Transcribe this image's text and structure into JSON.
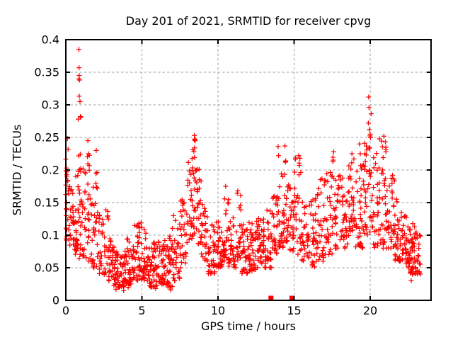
{
  "chart_data": {
    "type": "scatter",
    "title": "Day 201 of 2021, SRMTID for receiver cpvg",
    "xlabel": "GPS time / hours",
    "ylabel": "SRMTID / TECUs",
    "xlim": [
      0,
      24
    ],
    "ylim": [
      0,
      0.4
    ],
    "grid": true,
    "legend": "none",
    "marker": "plus",
    "marker_color": "#ff0000",
    "x_ticks": [
      {
        "v": 0,
        "label": "0"
      },
      {
        "v": 5,
        "label": "5"
      },
      {
        "v": 10,
        "label": "10"
      },
      {
        "v": 15,
        "label": "15"
      },
      {
        "v": 20,
        "label": "20"
      }
    ],
    "y_ticks": [
      {
        "v": 0,
        "label": "0"
      },
      {
        "v": 0.05,
        "label": "0.05"
      },
      {
        "v": 0.1,
        "label": "0.1"
      },
      {
        "v": 0.15,
        "label": "0.15"
      },
      {
        "v": 0.2,
        "label": "0.2"
      },
      {
        "v": 0.25,
        "label": "0.25"
      },
      {
        "v": 0.3,
        "label": "0.3"
      },
      {
        "v": 0.35,
        "label": "0.35"
      },
      {
        "v": 0.4,
        "label": "0.4"
      }
    ],
    "density_bins_comment": "each bin = [hour_start, hour_end, value_low, value_high, point_count] summarizing the dense scatter",
    "density_bins": [
      [
        0.0,
        0.25,
        0.09,
        0.22,
        26
      ],
      [
        0.25,
        0.55,
        0.08,
        0.18,
        22
      ],
      [
        0.55,
        0.8,
        0.07,
        0.2,
        22
      ],
      [
        0.8,
        1.0,
        0.06,
        0.34,
        24
      ],
      [
        1.0,
        1.3,
        0.06,
        0.22,
        22
      ],
      [
        1.3,
        1.6,
        0.06,
        0.24,
        20
      ],
      [
        1.6,
        1.9,
        0.05,
        0.18,
        20
      ],
      [
        1.9,
        2.2,
        0.05,
        0.2,
        18
      ],
      [
        2.2,
        2.5,
        0.04,
        0.14,
        18
      ],
      [
        2.5,
        2.8,
        0.04,
        0.15,
        18
      ],
      [
        2.8,
        3.1,
        0.03,
        0.1,
        22
      ],
      [
        3.1,
        3.5,
        0.02,
        0.09,
        30
      ],
      [
        3.5,
        4.0,
        0.02,
        0.08,
        38
      ],
      [
        4.0,
        4.5,
        0.025,
        0.095,
        38
      ],
      [
        4.5,
        5.0,
        0.03,
        0.12,
        38
      ],
      [
        5.0,
        5.5,
        0.03,
        0.11,
        38
      ],
      [
        5.5,
        6.0,
        0.02,
        0.09,
        40
      ],
      [
        6.0,
        6.5,
        0.025,
        0.09,
        40
      ],
      [
        6.5,
        7.0,
        0.02,
        0.1,
        36
      ],
      [
        7.0,
        7.5,
        0.03,
        0.13,
        32
      ],
      [
        7.5,
        8.0,
        0.05,
        0.16,
        30
      ],
      [
        8.0,
        8.3,
        0.08,
        0.22,
        24
      ],
      [
        8.3,
        8.6,
        0.1,
        0.253,
        26
      ],
      [
        8.6,
        8.9,
        0.08,
        0.21,
        22
      ],
      [
        8.9,
        9.3,
        0.06,
        0.15,
        26
      ],
      [
        9.3,
        9.8,
        0.04,
        0.12,
        34
      ],
      [
        9.8,
        10.3,
        0.05,
        0.13,
        36
      ],
      [
        10.3,
        10.7,
        0.06,
        0.175,
        28
      ],
      [
        10.7,
        11.2,
        0.05,
        0.13,
        34
      ],
      [
        11.2,
        11.5,
        0.06,
        0.165,
        20
      ],
      [
        11.5,
        12.0,
        0.04,
        0.12,
        36
      ],
      [
        12.0,
        12.5,
        0.045,
        0.12,
        38
      ],
      [
        12.5,
        13.0,
        0.05,
        0.135,
        38
      ],
      [
        13.0,
        13.5,
        0.05,
        0.14,
        34
      ],
      [
        13.5,
        14.0,
        0.07,
        0.16,
        30
      ],
      [
        14.0,
        14.3,
        0.08,
        0.2,
        22
      ],
      [
        14.3,
        14.6,
        0.09,
        0.235,
        24
      ],
      [
        14.6,
        15.0,
        0.07,
        0.18,
        28
      ],
      [
        15.0,
        15.5,
        0.07,
        0.22,
        30
      ],
      [
        15.5,
        16.0,
        0.06,
        0.17,
        30
      ],
      [
        16.0,
        16.5,
        0.05,
        0.16,
        32
      ],
      [
        16.5,
        17.0,
        0.06,
        0.19,
        30
      ],
      [
        17.0,
        17.5,
        0.07,
        0.2,
        30
      ],
      [
        17.5,
        18.0,
        0.08,
        0.225,
        30
      ],
      [
        18.0,
        18.5,
        0.08,
        0.2,
        34
      ],
      [
        18.5,
        19.0,
        0.09,
        0.22,
        34
      ],
      [
        19.0,
        19.5,
        0.08,
        0.21,
        34
      ],
      [
        19.5,
        19.85,
        0.1,
        0.25,
        26
      ],
      [
        19.85,
        20.15,
        0.1,
        0.3,
        18
      ],
      [
        20.15,
        20.6,
        0.08,
        0.23,
        30
      ],
      [
        20.6,
        21.1,
        0.08,
        0.25,
        34
      ],
      [
        21.1,
        21.6,
        0.08,
        0.2,
        34
      ],
      [
        21.6,
        22.1,
        0.06,
        0.16,
        36
      ],
      [
        22.1,
        22.6,
        0.05,
        0.13,
        40
      ],
      [
        22.6,
        23.05,
        0.04,
        0.12,
        42
      ],
      [
        23.05,
        23.35,
        0.04,
        0.1,
        16
      ]
    ],
    "notable_points": [
      [
        0.1,
        0.248
      ],
      [
        0.15,
        0.232
      ],
      [
        0.86,
        0.385
      ],
      [
        0.87,
        0.357
      ],
      [
        0.88,
        0.345
      ],
      [
        0.9,
        0.338
      ],
      [
        0.93,
        0.305
      ],
      [
        0.96,
        0.282
      ],
      [
        1.45,
        0.245
      ],
      [
        1.5,
        0.225
      ],
      [
        2.0,
        0.23
      ],
      [
        3.3,
        0.017
      ],
      [
        3.8,
        0.015
      ],
      [
        4.1,
        0.02
      ],
      [
        5.9,
        0.018
      ],
      [
        6.9,
        0.016
      ],
      [
        8.45,
        0.253
      ],
      [
        8.5,
        0.245
      ],
      [
        10.5,
        0.175
      ],
      [
        11.3,
        0.168
      ],
      [
        13.95,
        0.236
      ],
      [
        13.98,
        0.222
      ],
      [
        14.4,
        0.237
      ],
      [
        15.3,
        0.222
      ],
      [
        17.55,
        0.213
      ],
      [
        17.6,
        0.228
      ],
      [
        18.8,
        0.225
      ],
      [
        19.3,
        0.24
      ],
      [
        19.35,
        0.225
      ],
      [
        19.9,
        0.312
      ],
      [
        19.92,
        0.296
      ],
      [
        19.88,
        0.272
      ],
      [
        19.95,
        0.262
      ],
      [
        20.0,
        0.255
      ],
      [
        20.9,
        0.252
      ],
      [
        21.0,
        0.243
      ],
      [
        22.7,
        0.03
      ]
    ],
    "square_markers": [
      [
        13.48,
        0
      ],
      [
        14.86,
        0
      ]
    ]
  },
  "style": {
    "marker_color": "#ff0000",
    "grid_color": "#a0a0a0",
    "border_color": "#000000",
    "text_color": "#000000",
    "background": "#ffffff"
  }
}
